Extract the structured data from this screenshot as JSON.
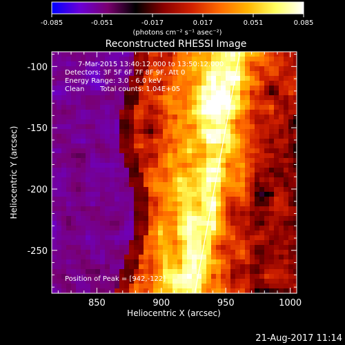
{
  "colorbar": {
    "ticks": [
      "-0.085",
      "-0.051",
      "-0.017",
      "0.017",
      "0.051",
      "0.085"
    ],
    "units": "(photons cm⁻² s⁻¹ asec⁻²)",
    "range": [
      -0.085,
      0.085
    ],
    "colormap": [
      "#0000ff",
      "#6a00d8",
      "#7a0070",
      "#000000",
      "#8a0000",
      "#d02000",
      "#ff6a00",
      "#ffb400",
      "#ffff60",
      "#ffffff"
    ]
  },
  "chart_data": {
    "type": "heatmap",
    "title": "Reconstructed RHESSI Image",
    "xlabel": "Heliocentric X (arcsec)",
    "ylabel": "Heliocentric Y (arcsec)",
    "xlim": [
      815,
      1005
    ],
    "ylim": [
      -285,
      -88
    ],
    "xticks": [
      "850",
      "900",
      "950",
      "1000"
    ],
    "yticks": [
      "-100",
      "-150",
      "-200",
      "-250"
    ],
    "xtick_values": [
      850,
      900,
      950,
      1000
    ],
    "ytick_values": [
      -100,
      -150,
      -200,
      -250
    ],
    "limb_line": {
      "x": [
        961,
        926
      ],
      "y": [
        -88,
        -285
      ]
    },
    "peak": {
      "x": 942,
      "y": -122
    },
    "annotations": {
      "time_range": "7-Mar-2015 13:40:12.000 to 13:50:12.000",
      "detectors": "Detectors: 3F 5F 6F 7F 8F 9F, Att 0",
      "energy": "Energy Range: 3.0 - 6.0 keV",
      "method": "Clean",
      "counts": "Total counts: 1.04E+05",
      "peak_text": "Position of Peak = [942,-122]"
    }
  },
  "footer": {
    "timestamp": "21-Aug-2017 11:14"
  }
}
